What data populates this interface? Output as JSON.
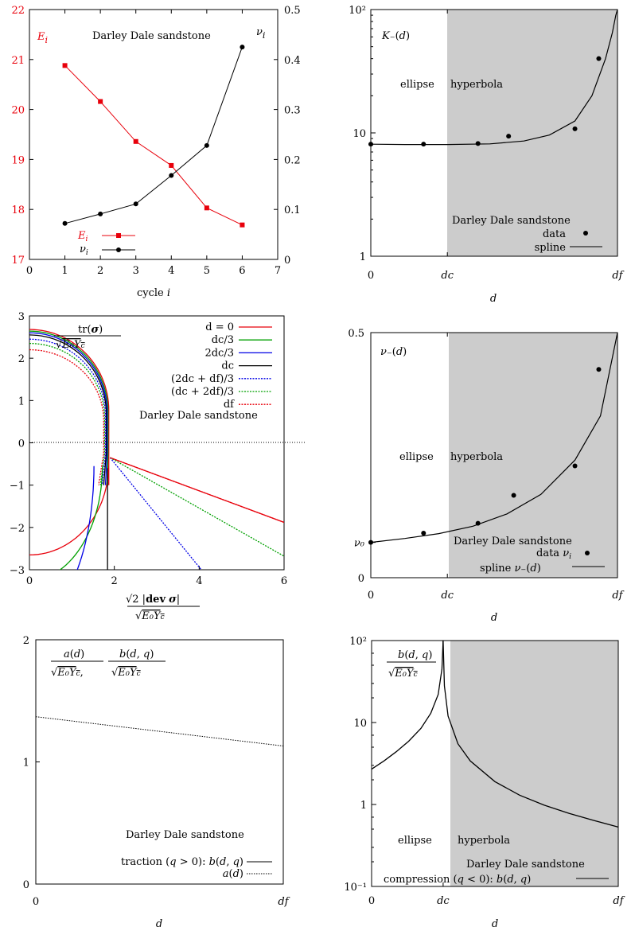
{
  "chart_data": [
    {
      "id": "p1",
      "type": "line",
      "annotation": "Darley Dale sandstone",
      "xlabel": "cycle i",
      "xlim": [
        0,
        7
      ],
      "xticks": [
        "0",
        "1",
        "2",
        "3",
        "4",
        "5",
        "6",
        "7"
      ],
      "ylim_left": [
        17,
        22
      ],
      "yticks_left": [
        "17",
        "18",
        "19",
        "20",
        "21",
        "22"
      ],
      "ylabel_left": "E_i",
      "ylim_right": [
        0,
        0.5
      ],
      "yticks_right": [
        "0",
        "0.1",
        "0.2",
        "0.3",
        "0.4",
        "0.5"
      ],
      "ylabel_right": "ν_i",
      "legend_placement": "bottom-left",
      "series": [
        {
          "name": "E_i",
          "axis": "left",
          "marker": "square",
          "color": "#e8000b",
          "x": [
            1,
            2,
            3,
            4,
            5,
            6
          ],
          "values": [
            20.88,
            20.16,
            19.36,
            18.88,
            18.03,
            17.69
          ]
        },
        {
          "name": "ν_i",
          "axis": "right",
          "marker": "circle",
          "color": "#000000",
          "x": [
            1,
            2,
            3,
            4,
            5,
            6
          ],
          "values": [
            0.072,
            0.091,
            0.111,
            0.168,
            0.228,
            0.425
          ]
        }
      ]
    },
    {
      "id": "p2",
      "type": "line",
      "title": "K₋(d)",
      "xlabel": "d",
      "xticks": [
        "0",
        "d_c",
        "d_f"
      ],
      "yscale": "log",
      "ylim": [
        1,
        100
      ],
      "yticks": [
        "1",
        "10",
        "10²"
      ],
      "region_labels": [
        "ellipse",
        "hyperbola"
      ],
      "annotation": "Darley Dale sandstone",
      "legend": [
        "data",
        "spline"
      ],
      "shade_from": 0.45,
      "data_points": {
        "x": [
          0,
          0.31,
          0.63,
          0.81,
          1.2,
          1.34
        ],
        "y": [
          8.1,
          8.1,
          8.2,
          9.4,
          10.8,
          40
        ]
      },
      "spline": {
        "x": [
          0,
          0.2,
          0.45,
          0.7,
          0.9,
          1.05,
          1.2,
          1.3,
          1.38,
          1.42,
          1.44,
          1.45
        ],
        "y": [
          8.1,
          8.05,
          8.05,
          8.15,
          8.6,
          9.6,
          12.5,
          20,
          40,
          65,
          90,
          100
        ]
      }
    },
    {
      "id": "p3",
      "type": "line",
      "annotation": "Darley Dale sandstone",
      "ylabel": "tr(σ) / √(E₀Y_c)",
      "xlabel": "√2 |dev σ| / √(E₀Y_c)",
      "xlim": [
        0,
        6
      ],
      "ylim": [
        -3,
        3
      ],
      "xticks": [
        "0",
        "2",
        "4",
        "6"
      ],
      "yticks": [
        "−3",
        "−2",
        "−1",
        "0",
        "1",
        "2",
        "3"
      ],
      "legend_placement": "top-right",
      "series": [
        {
          "name": "d = 0",
          "color": "#e8000b",
          "dash": false,
          "top": 2.68,
          "bottom_y": -2.65,
          "tail": [
            6.0,
            -1.88
          ]
        },
        {
          "name": "d_c/3",
          "color": "#00a000",
          "dash": false,
          "top": 2.64,
          "bottom_y": -3.25,
          "tail": null
        },
        {
          "name": "2d_c/3",
          "color": "#0000e6",
          "dash": false,
          "top": 2.6,
          "bottom_y": -4.2,
          "tail": null
        },
        {
          "name": "d_c",
          "color": "#000000",
          "dash": false,
          "top": 2.55,
          "bottom_y": null,
          "tail": null
        },
        {
          "name": "(2d_c + d_f)/3",
          "color": "#0000e6",
          "dash": true,
          "top": 2.45,
          "bottom_y": null,
          "tail": [
            4.05,
            -3.0
          ]
        },
        {
          "name": "(d_c + 2d_f)/3",
          "color": "#00a000",
          "dash": true,
          "top": 2.35,
          "bottom_y": null,
          "tail": [
            6.0,
            -2.68
          ]
        },
        {
          "name": "d_f",
          "color": "#e8000b",
          "dash": true,
          "top": 2.2,
          "bottom_y": null,
          "tail": [
            6.0,
            -1.88
          ]
        }
      ]
    },
    {
      "id": "p4",
      "type": "line",
      "title": "ν₋(d)",
      "xlabel": "d",
      "xticks": [
        "0",
        "d_c",
        "d_f"
      ],
      "ylim": [
        0,
        0.5
      ],
      "yticks": [
        "0",
        "ν₀",
        "0.5"
      ],
      "region_labels": [
        "ellipse",
        "hyperbola"
      ],
      "annotation": "Darley Dale sandstone",
      "legend": [
        "data ν_i",
        "spline ν₋(d)"
      ],
      "shade_from": 0.45,
      "data_points": {
        "x": [
          0,
          0.31,
          0.63,
          0.84,
          1.2,
          1.34
        ],
        "y": [
          0.072,
          0.091,
          0.111,
          0.168,
          0.228,
          0.425
        ]
      },
      "spline": {
        "x": [
          0,
          0.2,
          0.4,
          0.6,
          0.8,
          1.0,
          1.2,
          1.35,
          1.45
        ],
        "y": [
          0.072,
          0.08,
          0.09,
          0.105,
          0.13,
          0.17,
          0.24,
          0.33,
          0.5
        ]
      }
    },
    {
      "id": "p5",
      "type": "line",
      "title": "a(d)/√(E₀Y_c), b(d,q)/√(E₀Y_c)",
      "xlabel": "d",
      "xticks": [
        "0",
        "d_f"
      ],
      "ylim": [
        0,
        2
      ],
      "yticks": [
        "0",
        "1",
        "2"
      ],
      "annotation": "Darley Dale sandstone",
      "legend": [
        "traction (q > 0): b(d, q)",
        "a(d)"
      ],
      "series": [
        {
          "name": "a(d)",
          "dash": true,
          "x": [
            0,
            1
          ],
          "values": [
            1.37,
            1.13
          ]
        }
      ]
    },
    {
      "id": "p6",
      "type": "line",
      "title": "b(d,q)/√(E₀Y_c)",
      "xlabel": "d",
      "xticks": [
        "0",
        "d_c",
        "d_f"
      ],
      "yscale": "log",
      "ylim": [
        0.1,
        100
      ],
      "yticks": [
        "10⁻¹",
        "1",
        "10",
        "10²"
      ],
      "region_labels": [
        "ellipse",
        "hyperbola"
      ],
      "annotation": "Darley Dale sandstone",
      "legend": [
        "compression (q < 0): b(d, q)"
      ],
      "shade_from": 0.29,
      "series": [
        {
          "name": "left",
          "x": [
            0,
            0.05,
            0.1,
            0.15,
            0.2,
            0.24,
            0.27,
            0.285,
            0.29
          ],
          "values": [
            2.7,
            3.4,
            4.4,
            5.9,
            8.5,
            13,
            22,
            45,
            100
          ]
        },
        {
          "name": "right",
          "x": [
            0.29,
            0.295,
            0.31,
            0.35,
            0.4,
            0.5,
            0.6,
            0.7,
            0.8,
            0.9,
            1.0
          ],
          "values": [
            100,
            28,
            12,
            5.5,
            3.4,
            1.9,
            1.3,
            0.98,
            0.78,
            0.64,
            0.53
          ]
        }
      ]
    }
  ]
}
